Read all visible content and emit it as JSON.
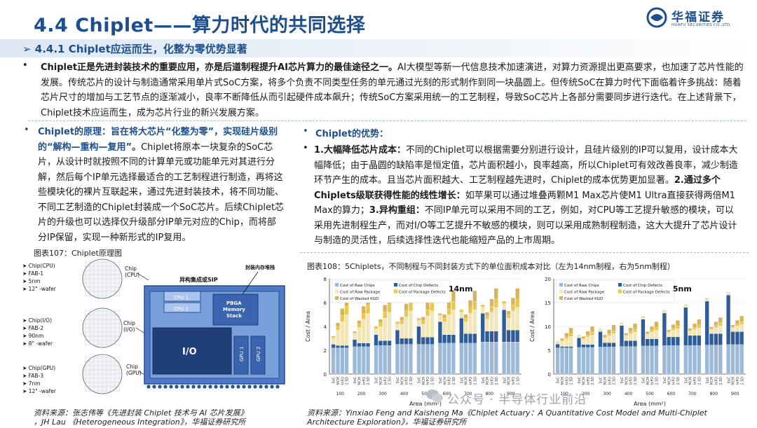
{
  "header": {
    "title": "4.4 Chiplet——算力时代的共同选择",
    "logo_cn": "华福证券",
    "logo_en": "HUAFU SECURITIES CO.,LTD."
  },
  "subtitle": "➢ 4.4.1 Chiplet应运而生，化整为零优势显著",
  "intro": {
    "bold": "Chiplet正是先进封装技术的重要应用，亦是后道制程提升AI芯片算力的最佳途径之一。",
    "text": "AI大模型等新一代信息技术加速演进，对算力资源提出更高要求，也加速了芯片性能的发展。传统芯片的设计与制造通常采用单片式SoC方案，将多个负责不同类型任务的单元通过光刻的形式制作到同一块晶圆上。但传统SoC在算力时代下面临着许多挑战：随着芯片尺寸的增加与工艺节点的逐渐减小，良率不断降低从而引起硬件成本飙升；传统SoC方案采用统一的工艺制程，导致SoC芯片上各部分需要同步进行迭代。在上述背景下，Chiplet技术应运而生，成为芯片行业的新兴发展方案。"
  },
  "left": {
    "head": "Chiplet的原理：旨在将大芯片“化整为零”，实现硅片级别的“解构—重构—复用”。",
    "text": "Chiplet将原本一块复杂的SoC芯片，从设计时就按照不同的计算单元或功能单元对其进行分解，然后每个IP单元选择最适合的工艺制程进行制造，再将这些模块化的裸片互联起来，通过先进封装技术，将不同功能、不同工艺制造的Chiplet封装成一个SoC芯片。后续Chiplet芯片的升级也可以选择仅升级部分IP单元对应的Chip，而将部分IP保留，实现一种新形式的IP复用。",
    "fig_caption": "图表107：Chiplet原理图",
    "source_a": "资料来源：张志伟等《先进封装 Chiplet 技术与 AI 芯片发展》",
    "source_b": "，JH Lau 《Heterogeneous Integration》，华福证券研究所"
  },
  "right": {
    "head": "Chiplet的优势：",
    "p1_bold": "1.大幅降低芯片成本：",
    "p1": "不同的Chiplet可以根据需要分别进行设计，且硅片级别的IP可以复用，设计成本大幅降低；由于晶圆的缺陷率是恒定值，芯片面积越小，良率越高，所以Chiplet可有效改善良率，减少制造环节产生的成本。且当芯片面积越大、工艺制程越先进时，Chiplet的成本优势更加显著。",
    "p2_bold": "2.通过多个Chiplets级联获得性能的线性增长：",
    "p2": "如苹果可以通过堆叠两颗M1 Max芯片使M1 Ultra直接获得两倍M1 Max的算力；",
    "p3_bold": "3.异构重组：",
    "p3": "不同IP单元可以采用不同的工艺，例如，对CPU等工艺提升敏感的模块，可以采用先进制程生产，而对I/O等工艺提升不敏感的模块，则可以采用成熟制程制造，这大大提升了芯片设计与制造的灵活性，后续选择性迭代也能缩短产品的上市周期。",
    "fig_caption": "图表108：5Chiplets，不同制程与不同封装方式下的单位面积成本对比（左为14nm制程，右为5nm制程）",
    "source_a": "资料来源：Yinxiao Feng and Kaisheng Ma《Chiplet Actuary：A Quantitative Cost Model and Multi-Chiplet",
    "source_b": "Architecture Exploration》，华福证券研究所"
  },
  "diagram": {
    "chips": [
      {
        "name": "Chip(CPU)",
        "fab": "FAB-1",
        "node": "5nm",
        "wafer": "12\" -wafer",
        "tag": "Chip\n(CPU)"
      },
      {
        "name": "Chip(I/O)",
        "fab": "FAB-2",
        "node": "90nm",
        "wafer": "8\" -wafer",
        "tag": "Chip\n(I/O)"
      },
      {
        "name": "Chip(GPU)",
        "fab": "FAB-3",
        "node": "7nm",
        "wafer": "12\" -wafer",
        "tag": "Chip\n(GPU)"
      }
    ],
    "sip_label": "异构集成或SIP",
    "mem_label": "封装内存堆栈",
    "cpu1": "CPU 1",
    "cpu2": "CPU 2",
    "pbga": "PBGA\nMemory\nStack",
    "io": "I/O",
    "gpu1": "GPU 1",
    "gpu2": "GPU 2"
  },
  "chart_data": [
    {
      "type": "bar",
      "stacked": true,
      "label": "14nm",
      "ylabel": "Cost / Area",
      "xlabel": "Area (mm²)",
      "x_ticks": [
        "100",
        "200",
        "300",
        "400",
        "500",
        "600",
        "700",
        "800",
        "900"
      ],
      "bar_labels": [
        "SoC",
        "MCM",
        "InFO",
        "2.5D"
      ],
      "ylim": [
        0,
        8
      ],
      "y_ticks": [
        0,
        2,
        4,
        6,
        8
      ],
      "legend": [
        "Cost of Raw Chips",
        "Cost of Raw Package",
        "Cost of Wasted KGD",
        "Cost of Chip Defects",
        "Cost of Package Defects"
      ],
      "colors": {
        "raw_chips": "#9cb9d9",
        "raw_package": "#f2e6b8",
        "wasted_kgd": "#d9b35a",
        "chip_defects": "#2e5b9a",
        "package_defects": "#e8c84a"
      },
      "series": [
        {
          "name": "Cost of Raw Chips",
          "values": [
            2.2,
            2.2,
            2.2,
            2.2,
            2.3,
            2.3,
            2.3,
            2.3,
            2.4,
            2.4,
            2.4,
            2.4,
            2.5,
            2.5,
            2.5,
            2.5,
            2.5,
            2.5,
            2.5,
            2.5,
            2.6,
            2.6,
            2.6,
            2.6,
            2.6,
            2.6,
            2.6,
            2.6,
            2.7,
            2.7,
            2.7,
            2.7,
            2.7,
            2.7,
            2.7,
            2.7
          ]
        },
        {
          "name": "Cost of Chip Defects",
          "values": [
            0.3,
            0.2,
            0.2,
            0.2,
            0.6,
            0.3,
            0.3,
            0.3,
            0.9,
            0.4,
            0.4,
            0.4,
            1.2,
            0.5,
            0.5,
            0.5,
            1.5,
            0.6,
            0.6,
            0.6,
            1.8,
            0.7,
            0.7,
            0.7,
            2.1,
            0.8,
            0.8,
            0.8,
            2.4,
            0.9,
            0.9,
            0.9,
            2.7,
            1.0,
            1.0,
            1.0
          ]
        },
        {
          "name": "Cost of Raw Package",
          "values": [
            0.5,
            1.3,
            2.0,
            2.6,
            0.5,
            1.3,
            2.0,
            2.5,
            0.5,
            1.2,
            1.9,
            2.4,
            0.5,
            1.2,
            1.8,
            2.3,
            0.5,
            1.1,
            1.8,
            2.2,
            0.5,
            1.1,
            1.7,
            2.1,
            0.5,
            1.0,
            1.7,
            2.0,
            0.5,
            1.0,
            1.6,
            2.0,
            0.5,
            1.0,
            1.6,
            1.9
          ]
        },
        {
          "name": "Cost of Package Defects",
          "values": [
            0.1,
            0.3,
            0.5,
            0.7,
            0.1,
            0.3,
            0.5,
            0.7,
            0.1,
            0.3,
            0.5,
            0.7,
            0.1,
            0.3,
            0.5,
            0.7,
            0.1,
            0.3,
            0.5,
            0.7,
            0.1,
            0.3,
            0.5,
            0.7,
            0.1,
            0.3,
            0.5,
            0.7,
            0.1,
            0.3,
            0.5,
            0.7,
            0.1,
            0.3,
            0.5,
            0.7
          ]
        },
        {
          "name": "Cost of Wasted KGD",
          "values": [
            0.1,
            0.3,
            0.6,
            0.9,
            0.1,
            0.3,
            0.6,
            0.9,
            0.1,
            0.3,
            0.6,
            0.9,
            0.1,
            0.3,
            0.6,
            0.9,
            0.1,
            0.3,
            0.6,
            0.9,
            0.1,
            0.3,
            0.6,
            0.9,
            0.1,
            0.3,
            0.6,
            0.9,
            0.1,
            0.3,
            0.6,
            0.9,
            0.1,
            0.3,
            0.6,
            0.9
          ]
        }
      ]
    },
    {
      "type": "bar",
      "stacked": true,
      "label": "5nm",
      "ylabel": "Cost / Area",
      "xlabel": "Area (mm²)",
      "x_ticks": [
        "100",
        "200",
        "300",
        "400",
        "500",
        "600",
        "700",
        "800",
        "900"
      ],
      "bar_labels": [
        "SoC",
        "MCM",
        "InFO",
        "2.5D"
      ],
      "ylim": [
        0,
        20
      ],
      "y_ticks": [
        0,
        5,
        10,
        15,
        20
      ],
      "legend": [
        "Cost of Raw Chips",
        "Cost of Raw Package",
        "Cost of Wasted KGD",
        "Cost of Chip Defects",
        "Cost of Package Defects"
      ],
      "colors": {
        "raw_chips": "#9cb9d9",
        "raw_package": "#f2e6b8",
        "wasted_kgd": "#d9b35a",
        "chip_defects": "#2e5b9a",
        "package_defects": "#e8c84a"
      },
      "series": [
        {
          "name": "Cost of Raw Chips",
          "values": [
            5.5,
            5.5,
            5.5,
            5.5,
            5.6,
            5.6,
            5.6,
            5.6,
            5.7,
            5.7,
            5.7,
            5.7,
            5.8,
            5.8,
            5.8,
            5.8,
            5.9,
            5.9,
            5.9,
            5.9,
            6.0,
            6.0,
            6.0,
            6.0,
            6.0,
            6.0,
            6.0,
            6.0,
            6.1,
            6.1,
            6.1,
            6.1,
            6.2,
            6.2,
            6.2,
            6.2
          ]
        },
        {
          "name": "Cost of Chip Defects",
          "values": [
            0.8,
            0.3,
            0.3,
            0.3,
            2.0,
            0.6,
            0.6,
            0.6,
            3.2,
            0.9,
            0.9,
            0.9,
            4.4,
            1.2,
            1.2,
            1.2,
            5.6,
            1.5,
            1.5,
            1.5,
            6.8,
            1.8,
            1.8,
            1.8,
            8.0,
            2.1,
            2.1,
            2.1,
            9.2,
            2.4,
            2.4,
            2.4,
            10.4,
            2.7,
            2.7,
            2.7
          ]
        },
        {
          "name": "Cost of Raw Package",
          "values": [
            0.4,
            1.1,
            1.6,
            2.1,
            0.4,
            1.1,
            1.6,
            2.0,
            0.4,
            1.0,
            1.5,
            1.9,
            0.4,
            1.0,
            1.5,
            1.8,
            0.4,
            0.9,
            1.4,
            1.8,
            0.4,
            0.9,
            1.4,
            1.7,
            0.4,
            0.9,
            1.3,
            1.6,
            0.4,
            0.8,
            1.3,
            1.6,
            0.4,
            0.8,
            1.2,
            1.5
          ]
        },
        {
          "name": "Cost of Package Defects",
          "values": [
            0.1,
            0.2,
            0.4,
            0.6,
            0.1,
            0.2,
            0.4,
            0.6,
            0.1,
            0.2,
            0.4,
            0.6,
            0.1,
            0.2,
            0.4,
            0.6,
            0.1,
            0.2,
            0.4,
            0.6,
            0.1,
            0.2,
            0.4,
            0.6,
            0.1,
            0.2,
            0.4,
            0.6,
            0.1,
            0.2,
            0.4,
            0.6,
            0.1,
            0.2,
            0.4,
            0.6
          ]
        },
        {
          "name": "Cost of Wasted KGD",
          "values": [
            0.1,
            0.4,
            0.8,
            1.2,
            0.1,
            0.4,
            0.8,
            1.2,
            0.1,
            0.4,
            0.8,
            1.2,
            0.1,
            0.4,
            0.8,
            1.2,
            0.1,
            0.4,
            0.8,
            1.2,
            0.1,
            0.4,
            0.8,
            1.2,
            0.1,
            0.4,
            0.8,
            1.2,
            0.1,
            0.4,
            0.8,
            1.2,
            0.1,
            0.4,
            0.8,
            1.2
          ]
        }
      ]
    }
  ],
  "watermark": "公众号 · 半导体行业前沿"
}
